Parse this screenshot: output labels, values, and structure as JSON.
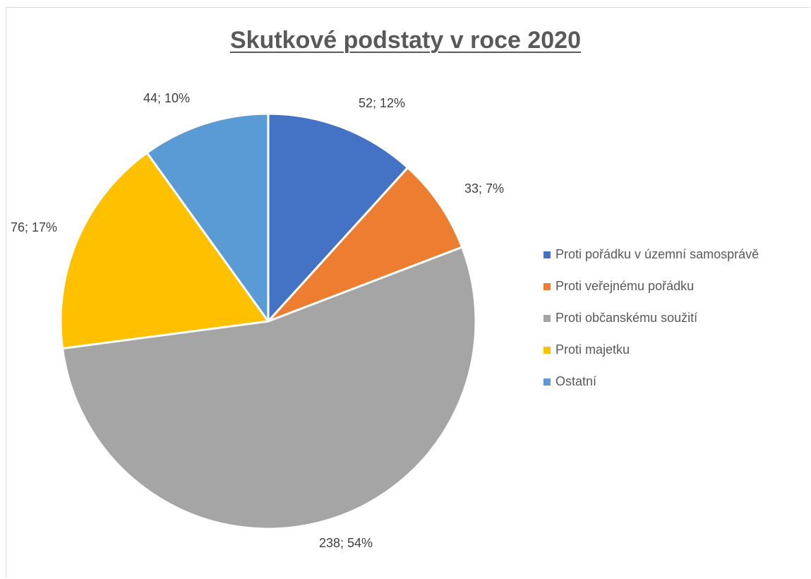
{
  "chart_data": {
    "type": "pie",
    "title": "Skutkové podstaty v roce 2020",
    "slices": [
      {
        "label": "Proti pořádku v územní samosprávě",
        "value": 52,
        "percent": 12,
        "color": "#4472C4",
        "data_label": "52; 12%"
      },
      {
        "label": "Proti veřejnému pořádku",
        "value": 33,
        "percent": 7,
        "color": "#ED7D31",
        "data_label": "33; 7%"
      },
      {
        "label": "Proti občanskému soužití",
        "value": 238,
        "percent": 54,
        "color": "#A5A5A5",
        "data_label": "238; 54%"
      },
      {
        "label": "Proti majetku",
        "value": 76,
        "percent": 17,
        "color": "#FFC000",
        "data_label": "76; 17%"
      },
      {
        "label": "Ostatní",
        "value": 44,
        "percent": 10,
        "color": "#5B9BD5",
        "data_label": "44; 10%"
      }
    ],
    "legend_position": "right"
  }
}
